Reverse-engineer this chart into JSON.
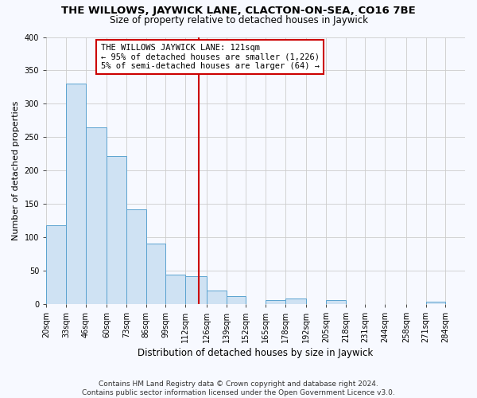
{
  "title": "THE WILLOWS, JAYWICK LANE, CLACTON-ON-SEA, CO16 7BE",
  "subtitle": "Size of property relative to detached houses in Jaywick",
  "xlabel": "Distribution of detached houses by size in Jaywick",
  "ylabel": "Number of detached properties",
  "bins": [
    "20sqm",
    "33sqm",
    "46sqm",
    "60sqm",
    "73sqm",
    "86sqm",
    "99sqm",
    "112sqm",
    "126sqm",
    "139sqm",
    "152sqm",
    "165sqm",
    "178sqm",
    "192sqm",
    "205sqm",
    "218sqm",
    "231sqm",
    "244sqm",
    "258sqm",
    "271sqm",
    "284sqm"
  ],
  "bin_edges": [
    20,
    33,
    46,
    60,
    73,
    86,
    99,
    112,
    126,
    139,
    152,
    165,
    178,
    192,
    205,
    218,
    231,
    244,
    258,
    271,
    284,
    297
  ],
  "values": [
    118,
    330,
    265,
    222,
    142,
    90,
    44,
    41,
    20,
    11,
    0,
    6,
    8,
    0,
    5,
    0,
    0,
    0,
    0,
    3,
    0
  ],
  "bar_facecolor": "#cfe2f3",
  "bar_edgecolor": "#5ba3d0",
  "property_line_x": 121,
  "property_line_color": "#cc0000",
  "annotation_line1": "THE WILLOWS JAYWICK LANE: 121sqm",
  "annotation_line2": "← 95% of detached houses are smaller (1,226)",
  "annotation_line3": "5% of semi-detached houses are larger (64) →",
  "annotation_box_facecolor": "#ffffff",
  "annotation_box_edgecolor": "#cc0000",
  "ylim": [
    0,
    400
  ],
  "yticks": [
    0,
    50,
    100,
    150,
    200,
    250,
    300,
    350,
    400
  ],
  "grid_color": "#cccccc",
  "background_color": "#f7f9ff",
  "plot_bg_color": "#f7f9ff",
  "footer_line1": "Contains HM Land Registry data © Crown copyright and database right 2024.",
  "footer_line2": "Contains public sector information licensed under the Open Government Licence v3.0.",
  "title_fontsize": 9.5,
  "subtitle_fontsize": 8.5,
  "xlabel_fontsize": 8.5,
  "ylabel_fontsize": 8,
  "tick_fontsize": 7,
  "annotation_fontsize": 7.5,
  "footer_fontsize": 6.5
}
